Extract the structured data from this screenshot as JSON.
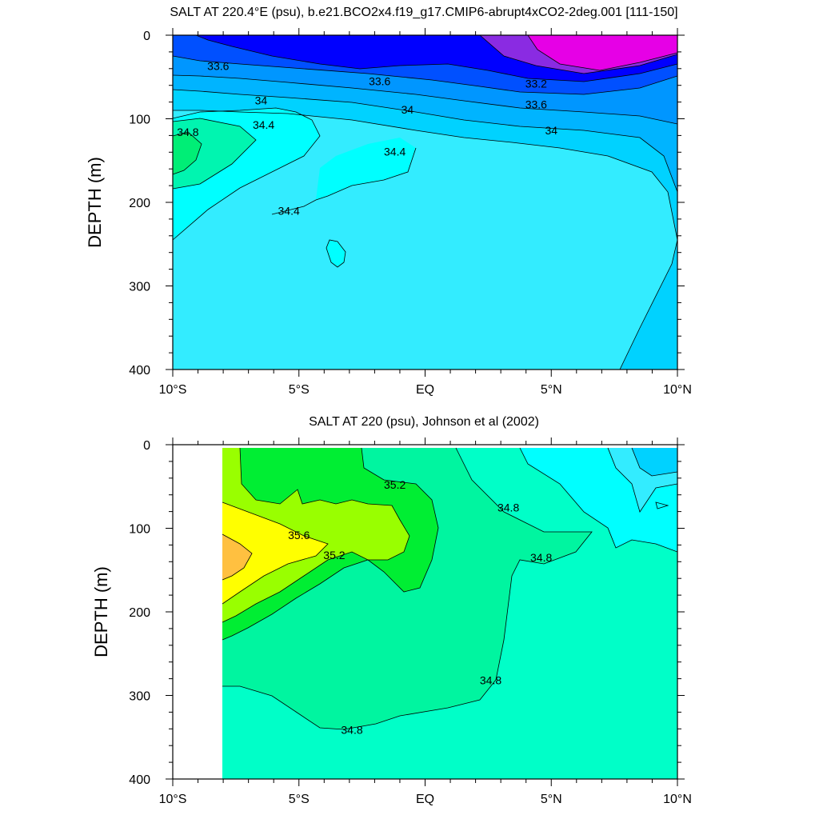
{
  "chart_data": [
    {
      "type": "contour",
      "title": "SALT AT 220.4°E (psu), b.e21.BCO2x4.f19_g17.CMIP6-abrupt4xCO2-2deg.001 [111-150]",
      "xlabel": "",
      "ylabel": "DEPTH (m)",
      "xlim": [
        -10,
        10
      ],
      "ylim": [
        400,
        0
      ],
      "x_ticks": [
        "10°S",
        "5°S",
        "EQ",
        "5°N",
        "10°N"
      ],
      "y_ticks": [
        "0",
        "100",
        "200",
        "300",
        "400"
      ],
      "fill_colors": {
        "lt_33.0": "#e600e6",
        "33.0_33.2": "#8a2be2",
        "33.2_33.4": "#0000ff",
        "33.4_33.6": "#0050ff",
        "33.6_33.8": "#0096ff",
        "33.8_34.0": "#00b4ff",
        "34.0_34.2": "#00d2ff",
        "34.2_34.4": "#33ecff",
        "34.4_34.6": "#00ffff",
        "34.6_34.8": "#00f5b0",
        "gt_34.8": "#00ee76"
      },
      "contour_labels": [
        {
          "text": "33.6",
          "x": -8.2,
          "d": 37
        },
        {
          "text": "33.6",
          "x": -1.8,
          "d": 55
        },
        {
          "text": "33.2",
          "x": 4.4,
          "d": 58
        },
        {
          "text": "33.6",
          "x": 4.4,
          "d": 83
        },
        {
          "text": "34",
          "x": -6.5,
          "d": 78
        },
        {
          "text": "34",
          "x": -0.7,
          "d": 89
        },
        {
          "text": "34",
          "x": 5.0,
          "d": 114
        },
        {
          "text": "34.4",
          "x": -6.4,
          "d": 107
        },
        {
          "text": "34.8",
          "x": -9.4,
          "d": 116
        },
        {
          "text": "34.4",
          "x": -1.2,
          "d": 139
        },
        {
          "text": "34.4",
          "x": -5.4,
          "d": 210
        }
      ]
    },
    {
      "type": "contour",
      "title": "SALT AT 220 (psu), Johnson et al (2002)",
      "xlabel": "",
      "ylabel": "DEPTH (m)",
      "xlim": [
        -10,
        10
      ],
      "ylim": [
        400,
        0
      ],
      "x_ticks": [
        "10°S",
        "5°S",
        "EQ",
        "5°N",
        "10°N"
      ],
      "y_ticks": [
        "0",
        "100",
        "200",
        "300",
        "400"
      ],
      "data_x_range": [
        -8,
        10
      ],
      "fill_colors": {
        "34.2_34.4": "#00d2ff",
        "34.4_34.6": "#33ecff",
        "34.6_34.8": "#00ffff",
        "34.8_35.0": "#00ffc8",
        "35.0_35.2": "#00f5a0",
        "35.2_35.4": "#00ee33",
        "35.4_35.6": "#99ff00",
        "35.6_35.8": "#ffff00",
        "gt_35.8": "#ffc040"
      },
      "contour_labels": [
        {
          "text": "35.2",
          "x": -1.2,
          "d": 48
        },
        {
          "text": "35.6",
          "x": -5.0,
          "d": 108
        },
        {
          "text": "35.2",
          "x": -3.6,
          "d": 132
        },
        {
          "text": "34.8",
          "x": 3.3,
          "d": 75
        },
        {
          "text": "34.8",
          "x": 4.6,
          "d": 135
        },
        {
          "text": "34.8",
          "x": 2.6,
          "d": 282
        },
        {
          "text": "34.8",
          "x": -2.9,
          "d": 341
        }
      ]
    }
  ]
}
